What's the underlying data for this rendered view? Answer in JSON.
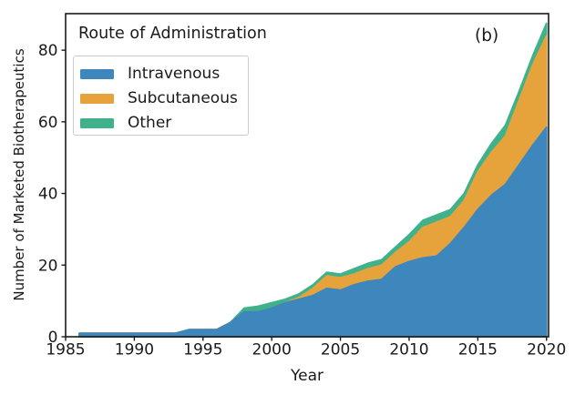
{
  "figure": {
    "panel_label": "(b)",
    "background": "#ffffff",
    "frame_color": "#1a1a1a",
    "text_color": "#1a1a1a"
  },
  "legend": {
    "title": "Route of Administration",
    "position": "upper left",
    "items": [
      {
        "label": "Intravenous",
        "color": "#3d87bd"
      },
      {
        "label": "Subcutaneous",
        "color": "#e6a33c"
      },
      {
        "label": "Other",
        "color": "#3fb28b"
      }
    ]
  },
  "chart_data": {
    "type": "area",
    "stacked": true,
    "title": "",
    "xlabel": "Year",
    "ylabel": "Number of Marketed Biotherapeutics",
    "xlim": [
      1985,
      2020.15
    ],
    "ylim": [
      0,
      90.2
    ],
    "xticks": [
      1985,
      1990,
      1995,
      2000,
      2005,
      2010,
      2015,
      2020
    ],
    "yticks": [
      0,
      20,
      40,
      60,
      80
    ],
    "grid": false,
    "legend_position": "upper left",
    "x": [
      1986,
      1987,
      1988,
      1989,
      1990,
      1991,
      1992,
      1993,
      1994,
      1995,
      1996,
      1997,
      1998,
      1999,
      2000,
      2001,
      2002,
      2003,
      2004,
      2005,
      2006,
      2007,
      2008,
      2009,
      2010,
      2011,
      2012,
      2013,
      2014,
      2015,
      2016,
      2017,
      2018,
      2019,
      2020
    ],
    "series": [
      {
        "name": "Intravenous",
        "color": "#3d87bd",
        "values": [
          1,
          1,
          1,
          1,
          1,
          1,
          1,
          1,
          2,
          2,
          2,
          4,
          7,
          7,
          8,
          9.5,
          10.5,
          11.5,
          13.5,
          13,
          14.5,
          15.5,
          16,
          19.5,
          21,
          22,
          22.5,
          26,
          30.5,
          35.5,
          39.5,
          42.5,
          48,
          53.5,
          58.5
        ]
      },
      {
        "name": "Subcutaneous",
        "color": "#e6a33c",
        "values": [
          0,
          0,
          0,
          0,
          0,
          0,
          0,
          0,
          0,
          0,
          0,
          0,
          0,
          0,
          0,
          0,
          0.5,
          2,
          3.5,
          3.5,
          3,
          3.5,
          4,
          4,
          5.5,
          8.5,
          9.5,
          7.5,
          7.5,
          10.5,
          12,
          13.5,
          18,
          22.5,
          25.5
        ]
      },
      {
        "name": "Other",
        "color": "#3fb28b",
        "values": [
          0,
          0,
          0,
          0,
          0,
          0,
          0,
          0,
          0,
          0,
          0,
          0,
          1,
          1.5,
          1.5,
          1,
          1,
          1,
          1,
          1,
          1.5,
          1.5,
          1.5,
          1.5,
          2,
          2,
          2,
          2,
          2,
          2,
          2.5,
          3,
          2.5,
          2.5,
          3.5
        ]
      }
    ]
  }
}
